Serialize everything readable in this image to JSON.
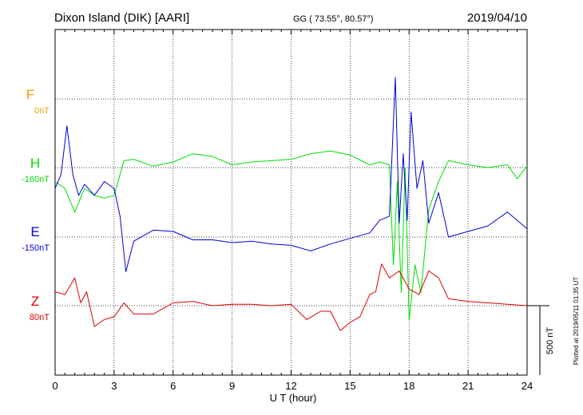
{
  "header": {
    "station": "Dixon Island (DIK)  [AARI]",
    "coords": "GG ( 73.55°,  80.57°)",
    "date": "2019/04/10"
  },
  "side_note": "Plotted at 2019/05/11 01:35 UT",
  "scale_label": "500 nT",
  "colors": {
    "F": "#f0a000",
    "H": "#00dd00",
    "E": "#0000dd",
    "Z": "#dd0000",
    "grid": "#000000"
  },
  "chart_data": {
    "type": "line",
    "xlabel": "U T (hour)",
    "xlim": [
      0,
      24
    ],
    "xticks": [
      "0",
      "3",
      "6",
      "9",
      "12",
      "15",
      "18",
      "21",
      "24"
    ],
    "scale_bar_nT": 500,
    "series": [
      {
        "name": "F",
        "baseline_label": "0nT",
        "x": [],
        "values": []
      },
      {
        "name": "H",
        "baseline_label": "-160nT",
        "x": [
          0,
          0.5,
          1.0,
          1.5,
          2.0,
          2.5,
          3.0,
          3.5,
          4.0,
          5.0,
          6.0,
          7.0,
          8.0,
          9.0,
          10.0,
          11.0,
          12.0,
          13.0,
          14.0,
          15.0,
          16.0,
          16.5,
          17.0,
          17.2,
          17.4,
          17.6,
          17.8,
          18.0,
          18.3,
          18.6,
          19.0,
          19.5,
          20.0,
          21.0,
          22.0,
          23.0,
          23.5,
          24.0
        ],
        "values": [
          -100,
          -150,
          -320,
          -150,
          -200,
          -220,
          -200,
          50,
          60,
          10,
          40,
          100,
          80,
          20,
          40,
          50,
          60,
          100,
          120,
          90,
          20,
          40,
          20,
          -700,
          -100,
          -900,
          0,
          -1100,
          -700,
          -900,
          -300,
          -100,
          50,
          20,
          0,
          20,
          -80,
          10
        ]
      },
      {
        "name": "E",
        "baseline_label": "-150nT",
        "x": [
          0,
          0.3,
          0.6,
          0.9,
          1.2,
          1.5,
          2.0,
          2.5,
          3.0,
          3.3,
          3.6,
          4.0,
          5.0,
          6.0,
          7.0,
          8.0,
          9.0,
          10.0,
          11.0,
          12.0,
          13.0,
          14.0,
          15.0,
          16.0,
          16.5,
          17.0,
          17.3,
          17.5,
          17.7,
          17.9,
          18.1,
          18.4,
          18.7,
          19.0,
          19.5,
          20.0,
          21.0,
          22.0,
          23.0,
          24.0
        ],
        "values": [
          350,
          450,
          800,
          450,
          300,
          380,
          300,
          400,
          350,
          150,
          -250,
          -30,
          50,
          40,
          -20,
          -20,
          -40,
          -30,
          -50,
          -60,
          -100,
          -50,
          -10,
          30,
          120,
          150,
          1150,
          100,
          600,
          120,
          900,
          350,
          550,
          100,
          320,
          0,
          40,
          80,
          180,
          60
        ]
      },
      {
        "name": "Z",
        "baseline_label": "80nT",
        "x": [
          0,
          0.5,
          1.0,
          1.3,
          1.6,
          2.0,
          2.5,
          3.0,
          3.5,
          4.0,
          5.0,
          6.0,
          7.0,
          8.0,
          9.0,
          10.0,
          11.0,
          12.0,
          12.8,
          13.5,
          14.0,
          14.5,
          15.0,
          15.5,
          16.0,
          16.3,
          16.6,
          17.0,
          17.5,
          18.0,
          18.5,
          19.0,
          19.5,
          20.0,
          21.0,
          22.0,
          23.0,
          24.0
        ],
        "values": [
          100,
          80,
          200,
          20,
          100,
          -150,
          -100,
          -80,
          20,
          -60,
          -60,
          20,
          30,
          0,
          10,
          10,
          0,
          10,
          -100,
          -40,
          -40,
          -180,
          -120,
          -80,
          80,
          100,
          300,
          200,
          250,
          120,
          80,
          250,
          200,
          50,
          30,
          20,
          10,
          0
        ]
      }
    ]
  }
}
